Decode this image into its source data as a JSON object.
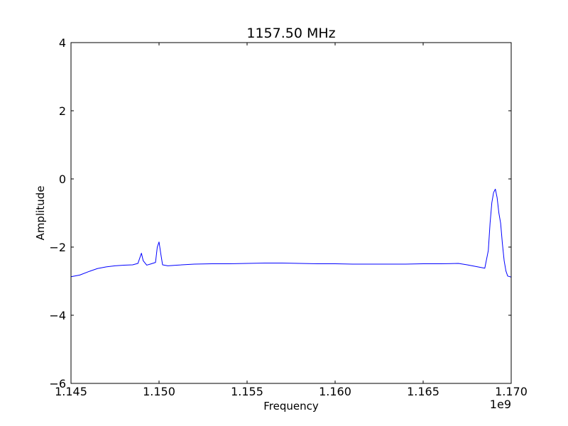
{
  "chart_data": {
    "type": "line",
    "title": "1157.50 MHz",
    "xlabel": "Frequency",
    "ylabel": "Amplitude",
    "x_offset_label": "1e9",
    "xlim": [
      1.145,
      1.17
    ],
    "ylim": [
      -6,
      4
    ],
    "x_tick_values": [
      1.145,
      1.15,
      1.155,
      1.16,
      1.165,
      1.17
    ],
    "x_tick_labels": [
      "1.145",
      "1.150",
      "1.155",
      "1.160",
      "1.165",
      "1.170"
    ],
    "y_tick_values": [
      -6,
      -4,
      -2,
      0,
      2,
      4
    ],
    "y_tick_labels": [
      "−6",
      "−4",
      "−2",
      "0",
      "2",
      "4"
    ],
    "grid": false,
    "legend": "none",
    "line_color": "#0000ff",
    "series": [
      {
        "x": [
          1.145,
          1.1455,
          1.146,
          1.1465,
          1.147,
          1.1475,
          1.148,
          1.1485,
          1.1488,
          1.149,
          1.1491,
          1.1493,
          1.1495,
          1.1498,
          1.1499,
          1.15,
          1.1501,
          1.1502,
          1.1505,
          1.151,
          1.152,
          1.153,
          1.154,
          1.155,
          1.156,
          1.157,
          1.158,
          1.159,
          1.16,
          1.161,
          1.162,
          1.163,
          1.164,
          1.165,
          1.166,
          1.167,
          1.1675,
          1.168,
          1.1685,
          1.1687,
          1.1688,
          1.1689,
          1.169,
          1.1691,
          1.1692,
          1.1693,
          1.1694,
          1.1695,
          1.1696,
          1.1697,
          1.1698,
          1.17
        ],
        "y": [
          -2.87,
          -2.82,
          -2.72,
          -2.63,
          -2.58,
          -2.55,
          -2.53,
          -2.52,
          -2.48,
          -2.18,
          -2.4,
          -2.53,
          -2.5,
          -2.45,
          -2.0,
          -1.85,
          -2.2,
          -2.52,
          -2.55,
          -2.53,
          -2.5,
          -2.49,
          -2.49,
          -2.48,
          -2.47,
          -2.47,
          -2.48,
          -2.49,
          -2.49,
          -2.5,
          -2.5,
          -2.5,
          -2.5,
          -2.49,
          -2.49,
          -2.48,
          -2.52,
          -2.57,
          -2.62,
          -2.1,
          -1.3,
          -0.7,
          -0.4,
          -0.3,
          -0.55,
          -1.0,
          -1.3,
          -1.9,
          -2.4,
          -2.7,
          -2.85,
          -2.88
        ]
      }
    ]
  }
}
